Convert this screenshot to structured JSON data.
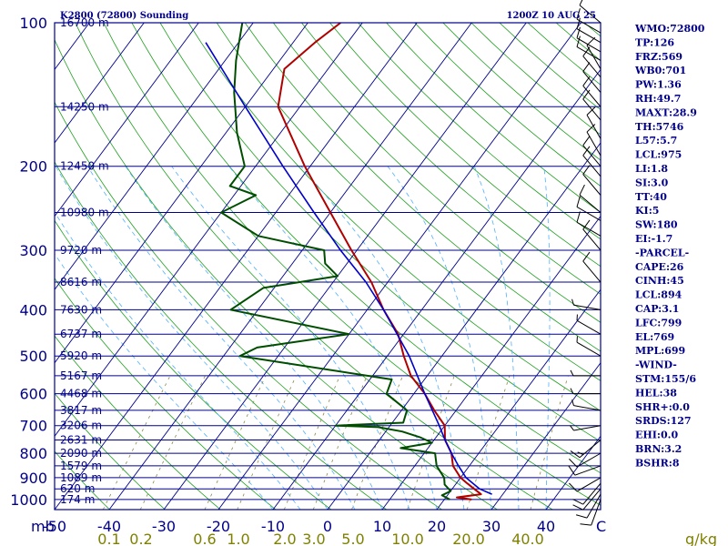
{
  "title_left": "K2800 (72800) Sounding",
  "title_right": "1200Z 10 AUG 25",
  "colors": {
    "axis": "#00008b",
    "isotherm": "#00008b",
    "dry_adiabat": "#1fa01f",
    "moist_adiabat": "#4fb0ff",
    "mixing_ratio": "#8a8a4a",
    "temperature": "#b00000",
    "dewpoint": "#004d00",
    "parcel": "#0000cc",
    "wind": "#000000",
    "mix_label": "#808000"
  },
  "chart_data": {
    "type": "skew-t",
    "pressure_axis": {
      "unit_label": "mb",
      "ticks": [
        100,
        200,
        300,
        400,
        500,
        600,
        700,
        800,
        900,
        1000
      ],
      "range": [
        100,
        1050
      ],
      "scale": "log"
    },
    "temperature_axis": {
      "ticks": [
        -50,
        -40,
        -30,
        -20,
        -10,
        0,
        10,
        20,
        30,
        40
      ],
      "tick_labels": [
        "-50",
        "-40",
        "-30",
        "-20",
        "-10",
        "0",
        "10",
        "20",
        "30",
        "40"
      ],
      "range_at_surface": [
        -50,
        50
      ]
    },
    "extra_corner_label": "C",
    "height_labels": [
      {
        "p": 100,
        "text": "16700 m"
      },
      {
        "p": 150,
        "text": "14250 m"
      },
      {
        "p": 200,
        "text": "12450 m"
      },
      {
        "p": 250,
        "text": "10980 m"
      },
      {
        "p": 300,
        "text": "9720 m"
      },
      {
        "p": 350,
        "text": "8616 m"
      },
      {
        "p": 400,
        "text": "7630 m"
      },
      {
        "p": 450,
        "text": "6737 m"
      },
      {
        "p": 500,
        "text": "5920 m"
      },
      {
        "p": 550,
        "text": "5167 m"
      },
      {
        "p": 600,
        "text": "4468 m"
      },
      {
        "p": 650,
        "text": "3817 m"
      },
      {
        "p": 700,
        "text": "3206 m"
      },
      {
        "p": 750,
        "text": "2631 m"
      },
      {
        "p": 800,
        "text": "2090 m"
      },
      {
        "p": 850,
        "text": "1579 m"
      },
      {
        "p": 900,
        "text": "1089 m"
      },
      {
        "p": 950,
        "text": "620 m"
      },
      {
        "p": 1000,
        "text": "174 m"
      }
    ],
    "mixing_ratio_labels": [
      "0.1",
      "0.2",
      "0.6",
      "1.0",
      "2.0",
      "3.0",
      "5.0",
      "10.0",
      "20.0",
      "40.0"
    ],
    "mixing_ratio_unit": "g/kg",
    "temperature_profile": [
      {
        "p": 1000,
        "t": 25
      },
      {
        "p": 990,
        "t": 22
      },
      {
        "p": 975,
        "t": 26
      },
      {
        "p": 950,
        "t": 24
      },
      {
        "p": 925,
        "t": 22
      },
      {
        "p": 900,
        "t": 20
      },
      {
        "p": 850,
        "t": 17
      },
      {
        "p": 800,
        "t": 15
      },
      {
        "p": 750,
        "t": 12
      },
      {
        "p": 700,
        "t": 10
      },
      {
        "p": 650,
        "t": 6
      },
      {
        "p": 600,
        "t": 2
      },
      {
        "p": 550,
        "t": -3
      },
      {
        "p": 500,
        "t": -7
      },
      {
        "p": 450,
        "t": -11
      },
      {
        "p": 400,
        "t": -17
      },
      {
        "p": 350,
        "t": -23
      },
      {
        "p": 300,
        "t": -31
      },
      {
        "p": 250,
        "t": -40
      },
      {
        "p": 200,
        "t": -51
      },
      {
        "p": 150,
        "t": -64
      },
      {
        "p": 125,
        "t": -68
      },
      {
        "p": 110,
        "t": -66
      },
      {
        "p": 100,
        "t": -64
      }
    ],
    "dewpoint_profile": [
      {
        "p": 1000,
        "t": 21
      },
      {
        "p": 980,
        "t": 19
      },
      {
        "p": 960,
        "t": 20
      },
      {
        "p": 930,
        "t": 18
      },
      {
        "p": 900,
        "t": 17
      },
      {
        "p": 850,
        "t": 14
      },
      {
        "p": 800,
        "t": 12
      },
      {
        "p": 780,
        "t": 5
      },
      {
        "p": 760,
        "t": 10
      },
      {
        "p": 740,
        "t": 7
      },
      {
        "p": 720,
        "t": 3
      },
      {
        "p": 705,
        "t": -2
      },
      {
        "p": 700,
        "t": -10
      },
      {
        "p": 690,
        "t": 2
      },
      {
        "p": 650,
        "t": 1
      },
      {
        "p": 600,
        "t": -5
      },
      {
        "p": 560,
        "t": -6
      },
      {
        "p": 500,
        "t": -37
      },
      {
        "p": 480,
        "t": -35
      },
      {
        "p": 450,
        "t": -20
      },
      {
        "p": 400,
        "t": -45
      },
      {
        "p": 360,
        "t": -42
      },
      {
        "p": 340,
        "t": -30
      },
      {
        "p": 320,
        "t": -34
      },
      {
        "p": 300,
        "t": -36
      },
      {
        "p": 280,
        "t": -50
      },
      {
        "p": 250,
        "t": -60
      },
      {
        "p": 230,
        "t": -56
      },
      {
        "p": 220,
        "t": -62
      },
      {
        "p": 200,
        "t": -62
      },
      {
        "p": 170,
        "t": -68
      },
      {
        "p": 140,
        "t": -74
      },
      {
        "p": 120,
        "t": -78
      },
      {
        "p": 100,
        "t": -82
      }
    ],
    "parcel_profile": [
      {
        "p": 975,
        "t": 28
      },
      {
        "p": 950,
        "t": 25
      },
      {
        "p": 900,
        "t": 21
      },
      {
        "p": 850,
        "t": 18
      },
      {
        "p": 800,
        "t": 15
      },
      {
        "p": 750,
        "t": 12
      },
      {
        "p": 700,
        "t": 9
      },
      {
        "p": 600,
        "t": 2
      },
      {
        "p": 500,
        "t": -6
      },
      {
        "p": 400,
        "t": -17
      },
      {
        "p": 350,
        "t": -24
      },
      {
        "p": 300,
        "t": -33
      },
      {
        "p": 250,
        "t": -43
      },
      {
        "p": 200,
        "t": -55
      },
      {
        "p": 150,
        "t": -70
      },
      {
        "p": 110,
        "t": -86
      }
    ],
    "wind_barbs": [
      {
        "p": 1000,
        "dir": 200,
        "spd": 10
      },
      {
        "p": 975,
        "dir": 210,
        "spd": 10
      },
      {
        "p": 950,
        "dir": 220,
        "spd": 10
      },
      {
        "p": 925,
        "dir": 220,
        "spd": 10
      },
      {
        "p": 900,
        "dir": 240,
        "spd": 10
      },
      {
        "p": 850,
        "dir": 250,
        "spd": 10
      },
      {
        "p": 800,
        "dir": 240,
        "spd": 10
      },
      {
        "p": 750,
        "dir": 230,
        "spd": 15
      },
      {
        "p": 700,
        "dir": 260,
        "spd": 5
      },
      {
        "p": 650,
        "dir": 280,
        "spd": 5
      },
      {
        "p": 600,
        "dir": 270,
        "spd": 5
      },
      {
        "p": 550,
        "dir": 270,
        "spd": 5
      },
      {
        "p": 500,
        "dir": 300,
        "spd": 5
      },
      {
        "p": 450,
        "dir": 300,
        "spd": 5
      },
      {
        "p": 400,
        "dir": 280,
        "spd": 5
      },
      {
        "p": 350,
        "dir": 320,
        "spd": 10
      },
      {
        "p": 300,
        "dir": 320,
        "spd": 10
      },
      {
        "p": 280,
        "dir": 300,
        "spd": 10
      },
      {
        "p": 260,
        "dir": 300,
        "spd": 10
      },
      {
        "p": 250,
        "dir": 310,
        "spd": 10
      },
      {
        "p": 230,
        "dir": 320,
        "spd": 10
      },
      {
        "p": 210,
        "dir": 320,
        "spd": 10
      },
      {
        "p": 200,
        "dir": 320,
        "spd": 10
      },
      {
        "p": 190,
        "dir": 330,
        "spd": 10
      },
      {
        "p": 175,
        "dir": 330,
        "spd": 10
      },
      {
        "p": 160,
        "dir": 320,
        "spd": 10
      },
      {
        "p": 150,
        "dir": 320,
        "spd": 10
      },
      {
        "p": 140,
        "dir": 320,
        "spd": 10
      },
      {
        "p": 130,
        "dir": 320,
        "spd": 10
      },
      {
        "p": 125,
        "dir": 330,
        "spd": 10
      },
      {
        "p": 120,
        "dir": 300,
        "spd": 10
      },
      {
        "p": 115,
        "dir": 300,
        "spd": 10
      },
      {
        "p": 110,
        "dir": 300,
        "spd": 10
      },
      {
        "p": 105,
        "dir": 300,
        "spd": 10
      },
      {
        "p": 100,
        "dir": 310,
        "spd": 10
      }
    ]
  },
  "stats": [
    "WMO:72800",
    "TP:126",
    "FRZ:569",
    "WB0:701",
    "PW:1.36",
    "RH:49.7",
    "MAXT:28.9",
    "TH:5746",
    "L57:5.7",
    "LCL:975",
    "LI:1.8",
    "SI:3.0",
    "TT:40",
    "KI:5",
    "SW:180",
    "EI:-1.7",
    "-PARCEL-",
    "CAPE:26",
    "CINH:45",
    "LCL:894",
    "CAP:3.1",
    "LFC:799",
    "EL:769",
    "MPL:699",
    "-WIND-",
    "STM:155/6",
    "HEL:38",
    "SHR+:0.0",
    "SRDS:127",
    "EHI:0.0",
    "BRN:3.2",
    "BSHR:8"
  ]
}
